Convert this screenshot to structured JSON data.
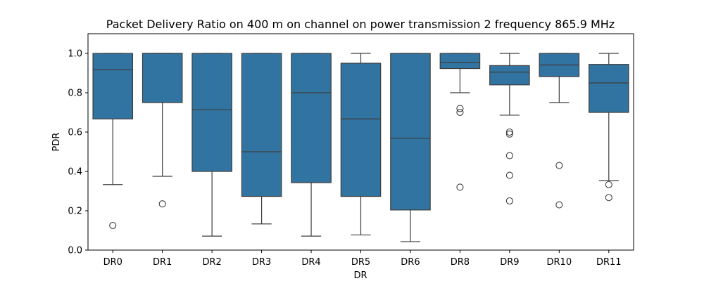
{
  "chart_data": {
    "type": "box",
    "title": "Packet Delivery Ratio on 400 m on channel on power transmission 2 frequency 865.9 MHz",
    "xlabel": "DR",
    "ylabel": "PDR",
    "ylim": [
      0.0,
      1.1
    ],
    "yticks": [
      0.0,
      0.2,
      0.4,
      0.6,
      0.8,
      1.0
    ],
    "ytick_labels": [
      "0.0",
      "0.2",
      "0.4",
      "0.6",
      "0.8",
      "1.0"
    ],
    "grid": false,
    "box_color": "#3274a1",
    "categories": [
      "DR0",
      "DR1",
      "DR2",
      "DR3",
      "DR4",
      "DR5",
      "DR6",
      "DR8",
      "DR9",
      "DR10",
      "DR11"
    ],
    "boxes": [
      {
        "category": "DR0",
        "whisker_low": 0.333,
        "q1": 0.667,
        "median": 0.917,
        "q3": 1.0,
        "whisker_high": 1.0,
        "outliers": [
          0.125
        ]
      },
      {
        "category": "DR1",
        "whisker_low": 0.375,
        "q1": 0.75,
        "median": 1.0,
        "q3": 1.0,
        "whisker_high": 1.0,
        "outliers": [
          0.235
        ]
      },
      {
        "category": "DR2",
        "whisker_low": 0.071,
        "q1": 0.4,
        "median": 0.714,
        "q3": 1.0,
        "whisker_high": 1.0,
        "outliers": []
      },
      {
        "category": "DR3",
        "whisker_low": 0.133,
        "q1": 0.273,
        "median": 0.5,
        "q3": 1.0,
        "whisker_high": 1.0,
        "outliers": []
      },
      {
        "category": "DR4",
        "whisker_low": 0.071,
        "q1": 0.343,
        "median": 0.8,
        "q3": 1.0,
        "whisker_high": 1.0,
        "outliers": []
      },
      {
        "category": "DR5",
        "whisker_low": 0.077,
        "q1": 0.273,
        "median": 0.667,
        "q3": 0.95,
        "whisker_high": 1.0,
        "outliers": []
      },
      {
        "category": "DR6",
        "whisker_low": 0.043,
        "q1": 0.204,
        "median": 0.568,
        "q3": 1.0,
        "whisker_high": 1.0,
        "outliers": []
      },
      {
        "category": "DR8",
        "whisker_low": 0.8,
        "q1": 0.923,
        "median": 0.955,
        "q3": 1.0,
        "whisker_high": 1.0,
        "outliers": [
          0.72,
          0.7,
          0.32
        ]
      },
      {
        "category": "DR9",
        "whisker_low": 0.686,
        "q1": 0.84,
        "median": 0.905,
        "q3": 0.938,
        "whisker_high": 1.0,
        "outliers": [
          0.6,
          0.59,
          0.48,
          0.38,
          0.25
        ]
      },
      {
        "category": "DR10",
        "whisker_low": 0.75,
        "q1": 0.882,
        "median": 0.941,
        "q3": 1.0,
        "whisker_high": 1.0,
        "outliers": [
          0.43,
          0.23
        ]
      },
      {
        "category": "DR11",
        "whisker_low": 0.353,
        "q1": 0.7,
        "median": 0.85,
        "q3": 0.944,
        "whisker_high": 1.0,
        "outliers": [
          0.333,
          0.267
        ]
      }
    ]
  }
}
